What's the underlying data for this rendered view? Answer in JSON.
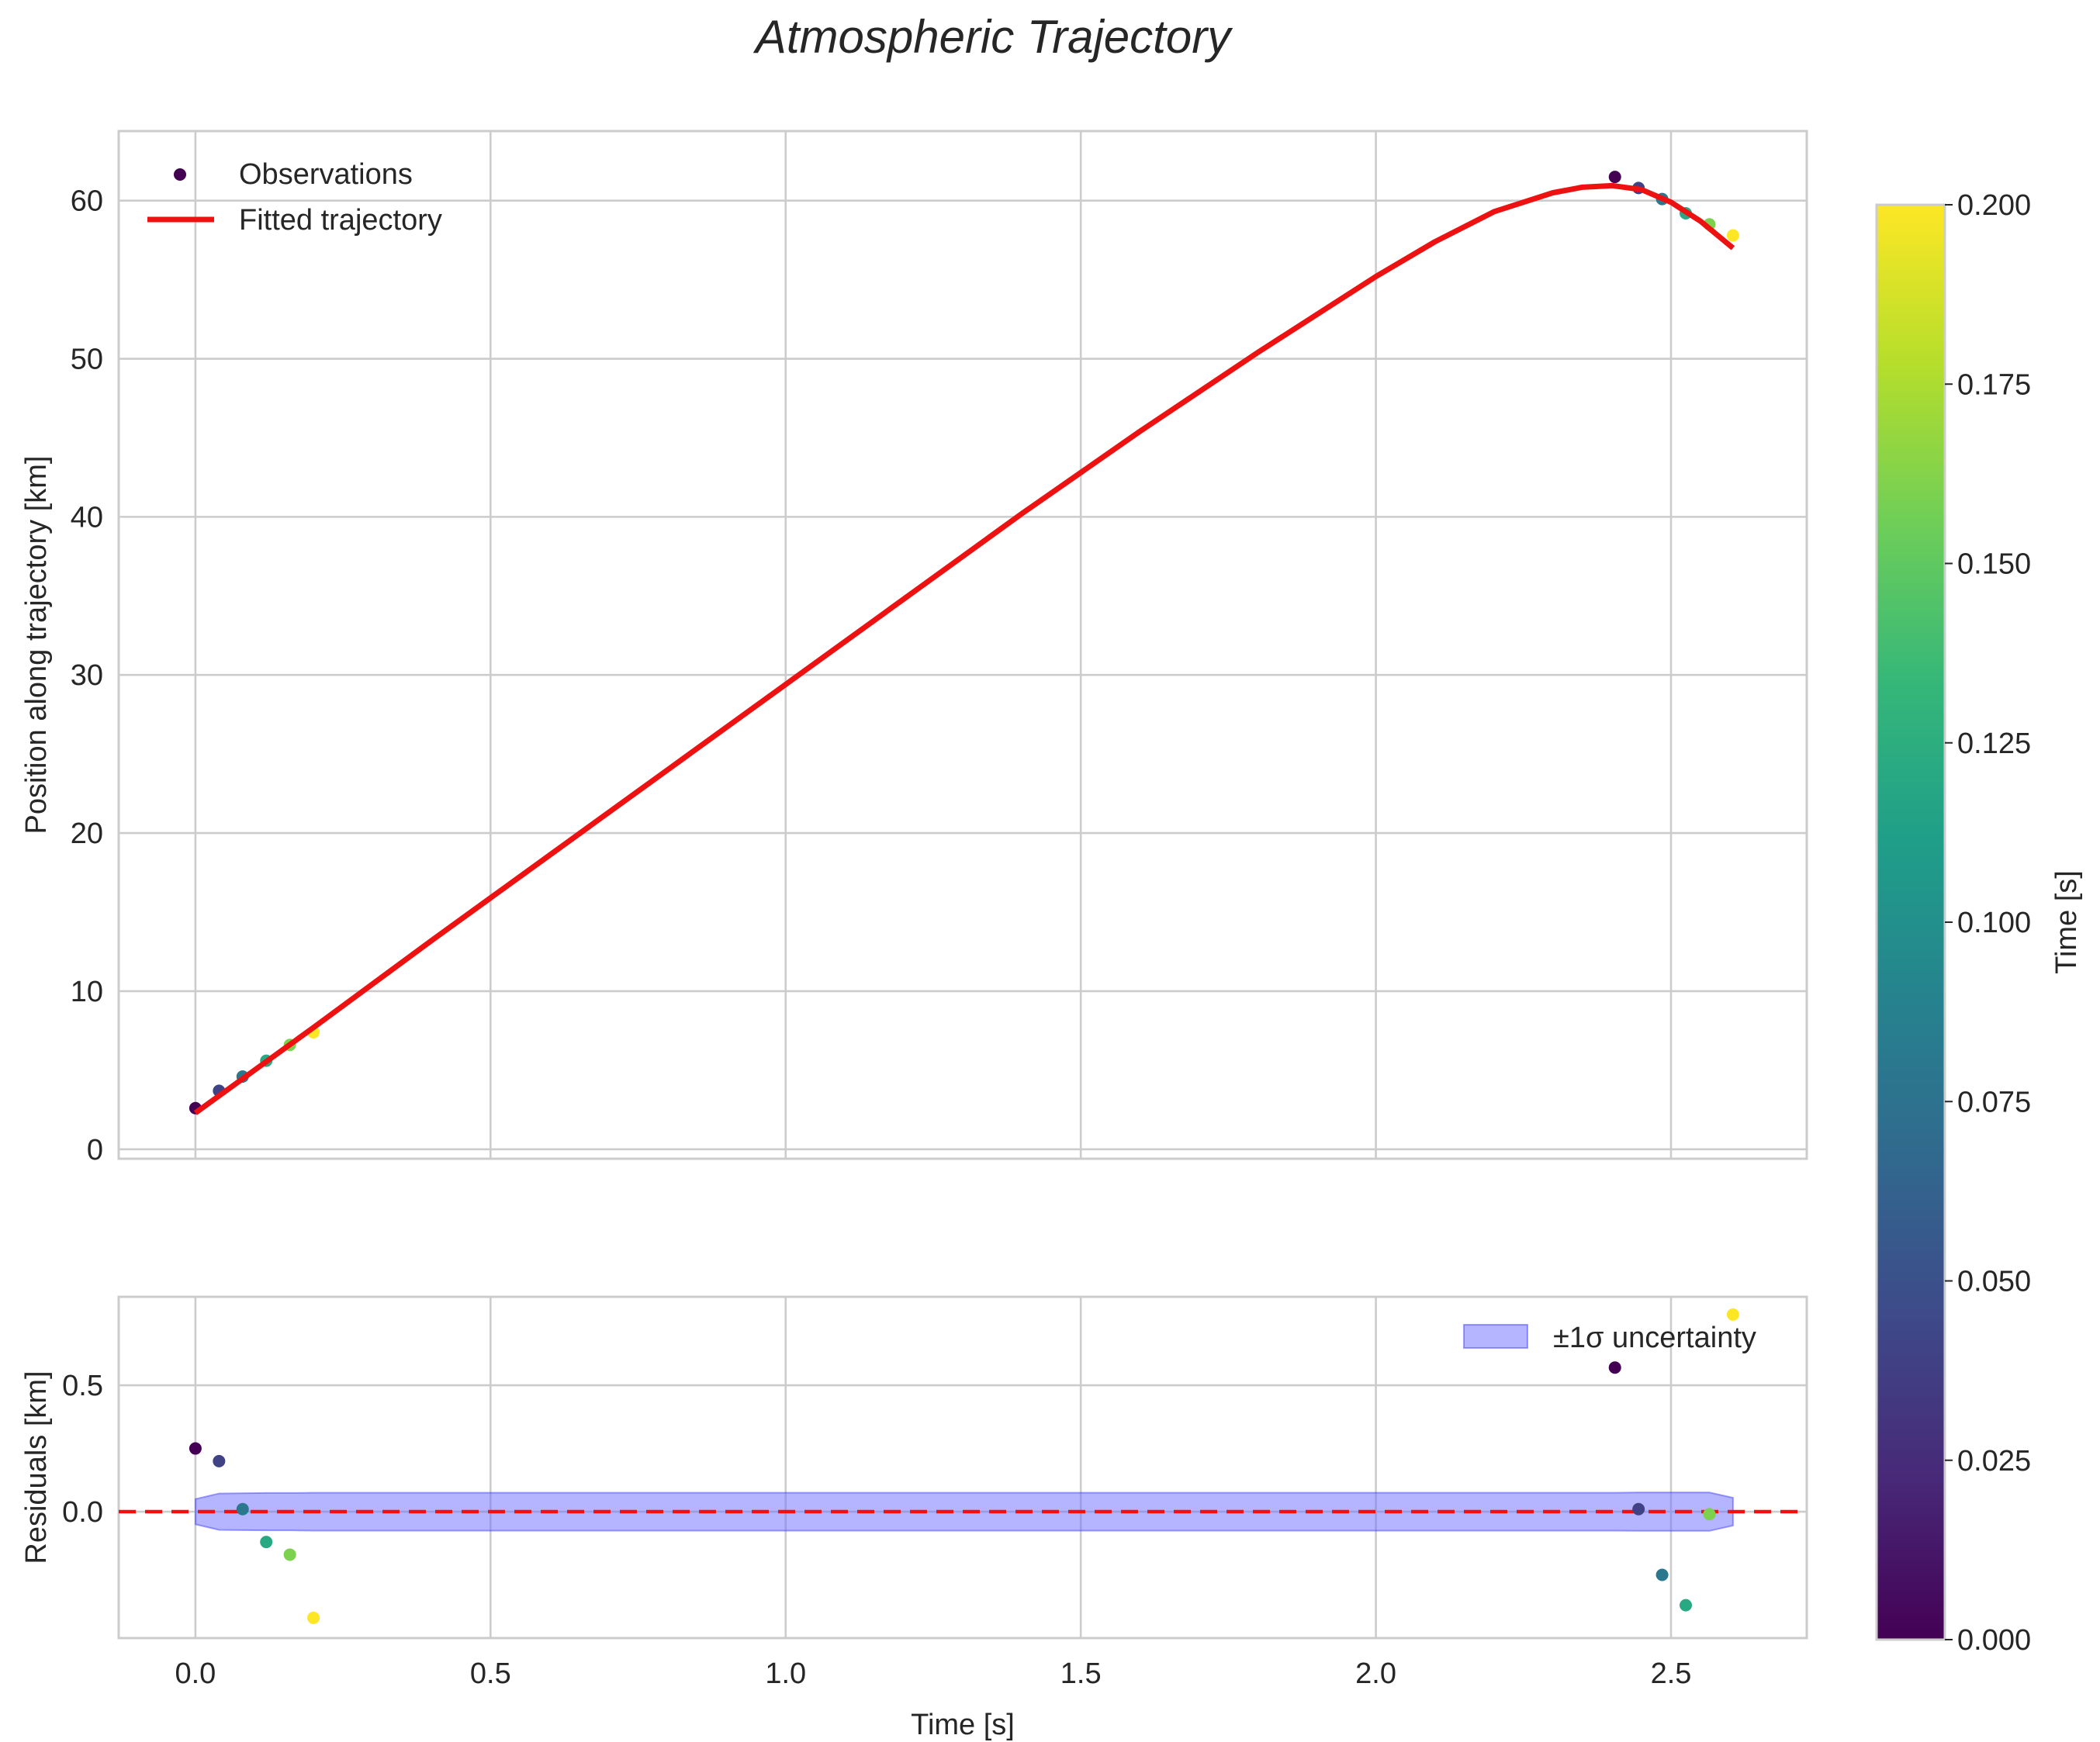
{
  "chart_data": [
    {
      "type": "scatter",
      "name": "main",
      "title": "Atmospheric Trajectory",
      "xlabel": "",
      "ylabel": "Position along trajectory [km]",
      "xlim": [
        -0.13,
        2.73
      ],
      "ylim": [
        -0.6,
        64.4
      ],
      "xticks": [
        0.0,
        0.5,
        1.0,
        1.5,
        2.0,
        2.5
      ],
      "xtick_labels_visible": false,
      "yticks": [
        0,
        10,
        20,
        30,
        40,
        50,
        60
      ],
      "ytick_labels": [
        "0",
        "10",
        "20",
        "30",
        "40",
        "50",
        "60"
      ],
      "grid": true,
      "legend": {
        "placement": "top-left",
        "entries": [
          "Observations",
          "Fitted trajectory"
        ]
      },
      "series": [
        {
          "name": "Observations",
          "kind": "scatter",
          "x": [
            0.0,
            0.04,
            0.08,
            0.12,
            0.16,
            0.2,
            2.405,
            2.445,
            2.485,
            2.525,
            2.565,
            2.605
          ],
          "y": [
            2.6,
            3.7,
            4.6,
            5.6,
            6.6,
            7.4,
            61.5,
            60.8,
            60.1,
            59.2,
            58.5,
            57.8
          ],
          "color_value": [
            0.0,
            0.04,
            0.08,
            0.12,
            0.16,
            0.2,
            0.0,
            0.04,
            0.08,
            0.12,
            0.16,
            0.2
          ]
        },
        {
          "name": "Fitted trajectory",
          "kind": "line",
          "color": "#ee1111",
          "x": [
            0.0,
            0.1,
            0.2,
            0.4,
            0.6,
            0.8,
            1.0,
            1.2,
            1.4,
            1.6,
            1.8,
            2.0,
            2.1,
            2.2,
            2.3,
            2.35,
            2.4,
            2.45,
            2.5,
            2.55,
            2.605
          ],
          "y": [
            2.3,
            5.0,
            7.7,
            13.2,
            18.6,
            24.0,
            29.4,
            34.8,
            40.2,
            45.4,
            50.4,
            55.2,
            57.4,
            59.3,
            60.5,
            60.85,
            60.95,
            60.7,
            59.9,
            58.7,
            57.0
          ]
        }
      ]
    },
    {
      "type": "scatter",
      "name": "residuals",
      "title": "",
      "xlabel": "Time [s]",
      "ylabel": "Residuals [km]",
      "xlim": [
        -0.13,
        2.73
      ],
      "ylim": [
        -0.5,
        0.85
      ],
      "xticks": [
        0.0,
        0.5,
        1.0,
        1.5,
        2.0,
        2.5
      ],
      "xtick_labels": [
        "0.0",
        "0.5",
        "1.0",
        "1.5",
        "2.0",
        "2.5"
      ],
      "yticks": [
        0.0,
        0.5
      ],
      "ytick_labels": [
        "0.0",
        "0.5"
      ],
      "grid": true,
      "zero_line": {
        "y": 0.0,
        "style": "dashed",
        "color": "#ee1111"
      },
      "legend": {
        "placement": "top-right",
        "entries": [
          "±1σ uncertainty"
        ]
      },
      "band": {
        "name": "±1σ uncertainty",
        "color": "#6b6bff",
        "x": [
          0.0,
          0.04,
          0.08,
          0.12,
          0.16,
          0.2,
          2.405,
          2.445,
          2.485,
          2.525,
          2.565,
          2.605
        ],
        "upper": [
          0.05,
          0.072,
          0.073,
          0.074,
          0.074,
          0.075,
          0.075,
          0.076,
          0.076,
          0.076,
          0.076,
          0.055
        ],
        "lower": [
          -0.05,
          -0.072,
          -0.073,
          -0.074,
          -0.074,
          -0.075,
          -0.075,
          -0.076,
          -0.076,
          -0.076,
          -0.076,
          -0.055
        ]
      },
      "series": [
        {
          "name": "Residuals",
          "kind": "scatter",
          "x": [
            0.0,
            0.04,
            0.08,
            0.12,
            0.16,
            0.2,
            2.405,
            2.445,
            2.485,
            2.525,
            2.565,
            2.605
          ],
          "y": [
            0.25,
            0.2,
            0.01,
            -0.12,
            -0.17,
            -0.42,
            0.57,
            0.01,
            -0.25,
            -0.37,
            -0.01,
            0.78
          ],
          "color_value": [
            0.0,
            0.04,
            0.08,
            0.12,
            0.16,
            0.2,
            0.0,
            0.04,
            0.08,
            0.12,
            0.16,
            0.2
          ]
        }
      ]
    },
    {
      "type": "colorbar",
      "name": "colorbar",
      "label": "Time [s]",
      "colormap": "viridis",
      "range": [
        0.0,
        0.2
      ],
      "ticks": [
        0.0,
        0.025,
        0.05,
        0.075,
        0.1,
        0.125,
        0.15,
        0.175,
        0.2
      ],
      "tick_labels": [
        "0.000",
        "0.025",
        "0.050",
        "0.075",
        "0.100",
        "0.125",
        "0.150",
        "0.175",
        "0.200"
      ],
      "colors": [
        "#440154",
        "#482878",
        "#3e4989",
        "#31688e",
        "#26828e",
        "#1f9e89",
        "#35b779",
        "#6ece58",
        "#b5de2b",
        "#fde725"
      ]
    }
  ],
  "style": {
    "grid_color": "#cccccc",
    "spine_color": "#cccccc",
    "text_color": "#262626"
  }
}
